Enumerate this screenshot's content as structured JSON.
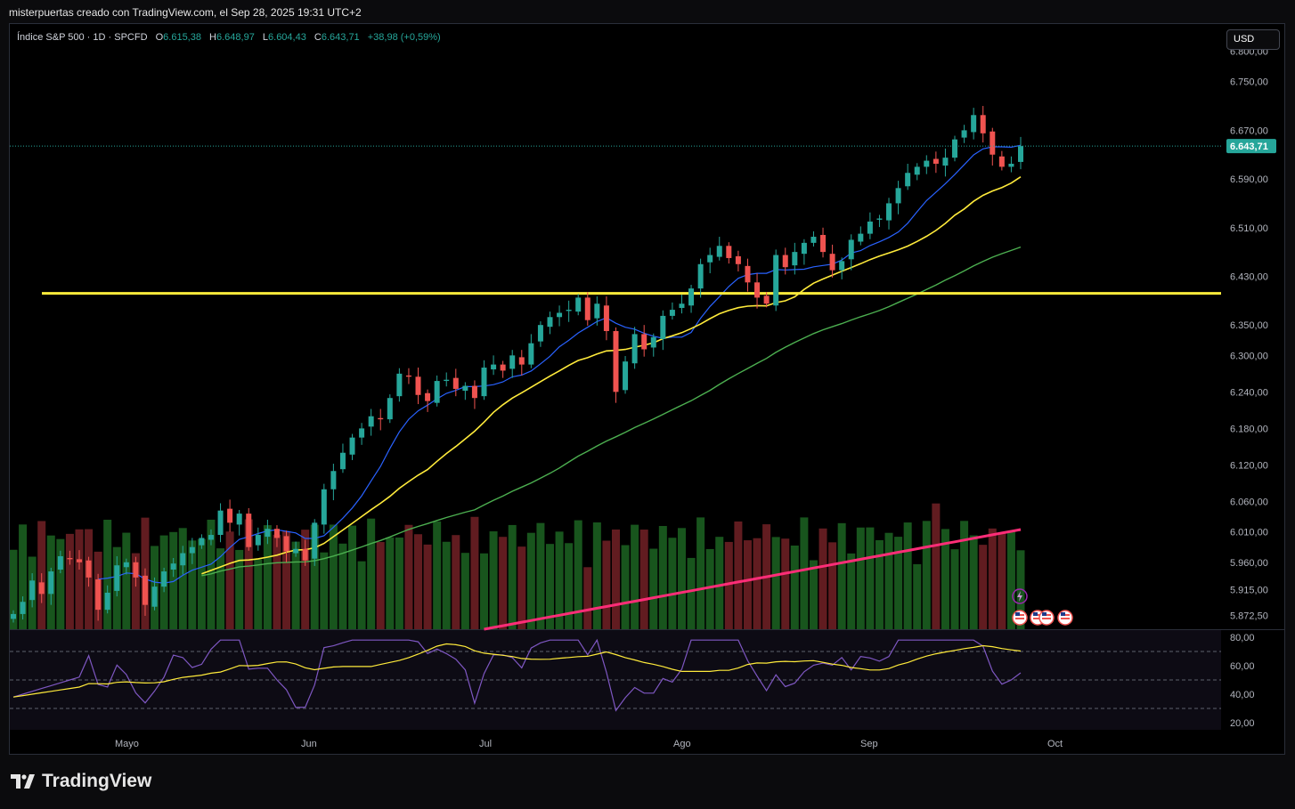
{
  "header": {
    "text": "misterpuertas creado con TradingView.com, el Sep 28, 2025 19:31 UTC+2"
  },
  "legend": {
    "symbol": "Índice S&P 500 · 1D · SPCFD",
    "o_label": "O",
    "o_value": "6.615,38",
    "h_label": "H",
    "h_value": "6.648,97",
    "l_label": "L",
    "l_value": "6.604,43",
    "c_label": "C",
    "c_value": "6.643,71",
    "change": "+38,98 (+0,59%)"
  },
  "currency": "USD",
  "footer": {
    "brand": "TradingView"
  },
  "colors": {
    "up": "#26a69a",
    "down": "#ef5350",
    "vol_up": "#1b5e20",
    "vol_down": "#6b1f24",
    "ma_fast": "#2962ff",
    "ma_mid": "#ffeb3b",
    "ma_slow": "#4caf50",
    "vol_ma": "#ff2d78",
    "support": "#ffeb3b",
    "rsi": "#7e57c2",
    "rsi_ma": "#ffeb3b"
  },
  "chart_data": [
    {
      "type": "candlestick",
      "ylim": [
        5850,
        6830
      ],
      "price_ticks": [
        "6.800,00",
        "6.750,00",
        "6.670,00",
        "6.590,00",
        "6.510,00",
        "6.430,00",
        "6.350,00",
        "6.300,00",
        "6.240,00",
        "6.180,00",
        "6.120,00",
        "6.060,00",
        "6.010,00",
        "5.960,00",
        "5.915,00",
        "5.872,50"
      ],
      "last_price_label": "6.643,71",
      "support_level": 6402,
      "x_labels": [
        "Mayo",
        "Jun",
        "Jul",
        "Ago",
        "Sep",
        "Oct"
      ],
      "candles_note": "approximate daily OHLC read from chart",
      "closes": [
        5875,
        5895,
        5930,
        5908,
        5945,
        5970,
        5965,
        5960,
        5935,
        5882,
        5910,
        5955,
        5960,
        5935,
        5890,
        5920,
        5945,
        5958,
        5975,
        5985,
        6000,
        6005,
        6045,
        6025,
        6040,
        5985,
        6005,
        6015,
        6000,
        5978,
        5982,
        5963,
        6025,
        6080,
        6110,
        6140,
        6165,
        6180,
        6200,
        6195,
        6230,
        6270,
        6265,
        6235,
        6225,
        6258,
        6260,
        6245,
        6250,
        6230,
        6280,
        6285,
        6275,
        6300,
        6285,
        6320,
        6350,
        6363,
        6370,
        6375,
        6395,
        6358,
        6385,
        6340,
        6240,
        6290,
        6335,
        6310,
        6330,
        6365,
        6375,
        6385,
        6410,
        6450,
        6465,
        6480,
        6460,
        6450,
        6420,
        6395,
        6385,
        6465,
        6445,
        6470,
        6485,
        6495,
        6470,
        6440,
        6455,
        6490,
        6500,
        6520,
        6525,
        6550,
        6575,
        6600,
        6610,
        6620,
        6615,
        6625,
        6655,
        6670,
        6695,
        6665,
        6630,
        6610,
        6615,
        6644
      ],
      "volume_ylim": [
        0,
        100
      ],
      "volume_ma_end": 36,
      "rsi": {
        "ticks": [
          "80,00",
          "60,00",
          "40,00",
          "20,00"
        ],
        "ylim": [
          15,
          85
        ],
        "levels": [
          70,
          50,
          30
        ]
      }
    }
  ]
}
